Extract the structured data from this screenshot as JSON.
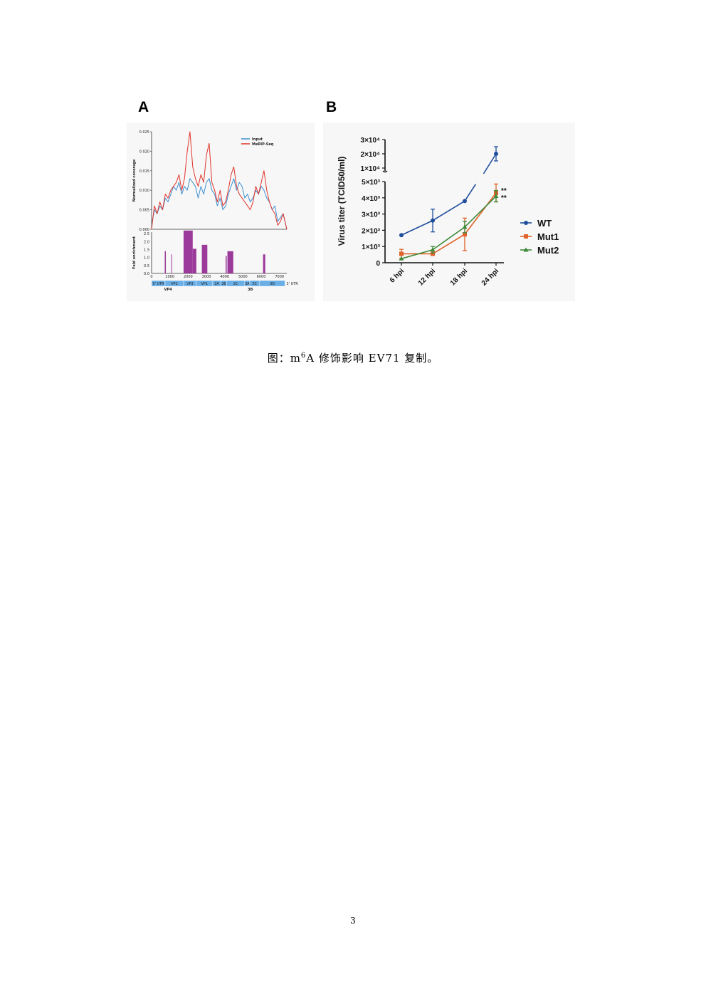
{
  "figure": {
    "panel_a_letter": "A",
    "panel_b_letter": "B",
    "caption_prefix": "图：m",
    "caption_sup": "6",
    "caption_suffix": "A 修饰影响 EV71 复制。",
    "page_number": "3"
  },
  "colors": {
    "input": "#3f8fd0",
    "merip": "#e0342c",
    "fold": "#9b3a9a",
    "genome": "#6aaee6",
    "wt": "#1f4e9c",
    "mut1": "#e0622a",
    "mut2": "#3e8a3a"
  },
  "chart_data": [
    {
      "type": "line",
      "panel": "A (top)",
      "ylabel": "Normalized coverage",
      "ylim": [
        0,
        0.025
      ],
      "y_ticks": [
        "0.000",
        "0.005",
        "0.010",
        "0.015",
        "0.020",
        "0.025"
      ],
      "xlim": [
        0,
        7400
      ],
      "series": [
        {
          "name": "Input",
          "x": [
            0,
            150,
            300,
            450,
            600,
            750,
            900,
            1050,
            1200,
            1350,
            1500,
            1650,
            1800,
            1950,
            2100,
            2250,
            2400,
            2550,
            2700,
            2850,
            3000,
            3150,
            3300,
            3450,
            3600,
            3750,
            3900,
            4050,
            4200,
            4350,
            4500,
            4650,
            4800,
            4950,
            5100,
            5250,
            5400,
            5550,
            5700,
            5850,
            6000,
            6150,
            6300,
            6450,
            6600,
            6750,
            6900,
            7050,
            7200,
            7400
          ],
          "y": [
            0.001,
            0.005,
            0.004,
            0.006,
            0.005,
            0.008,
            0.007,
            0.009,
            0.011,
            0.01,
            0.012,
            0.009,
            0.011,
            0.01,
            0.013,
            0.012,
            0.011,
            0.008,
            0.011,
            0.009,
            0.012,
            0.013,
            0.01,
            0.009,
            0.006,
            0.008,
            0.005,
            0.006,
            0.009,
            0.011,
            0.013,
            0.01,
            0.012,
            0.011,
            0.008,
            0.009,
            0.007,
            0.008,
            0.01,
            0.009,
            0.011,
            0.01,
            0.008,
            0.007,
            0.005,
            0.006,
            0.002,
            0.003,
            0.004,
            0.0
          ]
        },
        {
          "name": "MeRIP-Seq",
          "x": [
            0,
            150,
            300,
            450,
            600,
            750,
            900,
            1050,
            1200,
            1350,
            1500,
            1650,
            1800,
            1950,
            2100,
            2250,
            2400,
            2550,
            2700,
            2850,
            3000,
            3150,
            3300,
            3450,
            3600,
            3750,
            3900,
            4050,
            4200,
            4350,
            4500,
            4650,
            4800,
            4950,
            5100,
            5250,
            5400,
            5550,
            5700,
            5850,
            6000,
            6150,
            6300,
            6450,
            6600,
            6750,
            6900,
            7050,
            7200,
            7400
          ],
          "y": [
            0.0,
            0.006,
            0.004,
            0.007,
            0.005,
            0.009,
            0.008,
            0.01,
            0.011,
            0.012,
            0.014,
            0.01,
            0.013,
            0.02,
            0.025,
            0.016,
            0.013,
            0.011,
            0.014,
            0.012,
            0.019,
            0.022,
            0.012,
            0.01,
            0.007,
            0.01,
            0.006,
            0.007,
            0.01,
            0.014,
            0.016,
            0.011,
            0.009,
            0.008,
            0.007,
            0.006,
            0.005,
            0.007,
            0.011,
            0.009,
            0.012,
            0.015,
            0.01,
            0.007,
            0.005,
            0.004,
            0.001,
            0.002,
            0.004,
            0.0
          ]
        }
      ]
    },
    {
      "type": "bar",
      "panel": "A (bottom)",
      "ylabel": "Fold enrichment",
      "ylim": [
        0,
        2.6
      ],
      "y_ticks": [
        "0.0",
        "0.5",
        "1.0",
        "1.5",
        "2.0",
        "2.5"
      ],
      "x_ticks": [
        "0",
        "1000",
        "2000",
        "3000",
        "4000",
        "5000",
        "6000",
        "7000"
      ],
      "xlim": [
        0,
        7400
      ],
      "bars": [
        {
          "start": 720,
          "end": 780,
          "value": 1.4
        },
        {
          "start": 1080,
          "end": 1110,
          "value": 1.2
        },
        {
          "start": 1750,
          "end": 2250,
          "value": 2.7
        },
        {
          "start": 2250,
          "end": 2450,
          "value": 1.55
        },
        {
          "start": 2750,
          "end": 3050,
          "value": 1.8
        },
        {
          "start": 4050,
          "end": 4110,
          "value": 1.1
        },
        {
          "start": 4150,
          "end": 4470,
          "value": 1.4
        },
        {
          "start": 6100,
          "end": 6220,
          "value": 1.2
        }
      ],
      "genome_regions": [
        "5' UTR",
        "VP2",
        "VP3",
        "VP1",
        "2A",
        "2B",
        "2C",
        "3A",
        "3C",
        "3D"
      ],
      "genome_region_ranges": [
        [
          0,
          740
        ],
        [
          740,
          1750
        ],
        [
          1750,
          2450
        ],
        [
          2450,
          3340
        ],
        [
          3340,
          3790
        ],
        [
          3790,
          4110
        ],
        [
          4110,
          5100
        ],
        [
          5100,
          5370
        ],
        [
          5370,
          5910
        ],
        [
          5910,
          7300
        ]
      ],
      "utr3_label": "3' UTR",
      "sublabels": [
        "VP4",
        "3B"
      ],
      "sublabel_x": [
        900,
        5400
      ]
    },
    {
      "type": "line",
      "panel": "B",
      "ylabel": "Virus titer (TCID50/ml)",
      "categories": [
        "6 hpi",
        "12 hpi",
        "18 hpi",
        "24 hpi"
      ],
      "y_ticks_lower": [
        "0",
        "1×10³",
        "2×10³",
        "3×10³",
        "4×10³",
        "5×10³"
      ],
      "y_ticks_upper": [
        "1×10⁴",
        "2×10⁴",
        "3×10⁴"
      ],
      "axis_break": {
        "lower_max": 5000,
        "upper_min": 10000,
        "upper_max": 30000
      },
      "significance": "**",
      "series": [
        {
          "name": "WT",
          "values": [
            1700,
            2600,
            3800,
            20000
          ],
          "errors": [
            0,
            700,
            0,
            5000
          ],
          "marker": "circle"
        },
        {
          "name": "Mut1",
          "values": [
            550,
            550,
            1750,
            4300
          ],
          "errors": [
            280,
            0,
            1000,
            550
          ],
          "marker": "square"
        },
        {
          "name": "Mut2",
          "values": [
            250,
            800,
            2200,
            4100
          ],
          "errors": [
            0,
            200,
            350,
            350
          ],
          "marker": "triangle"
        }
      ]
    }
  ]
}
